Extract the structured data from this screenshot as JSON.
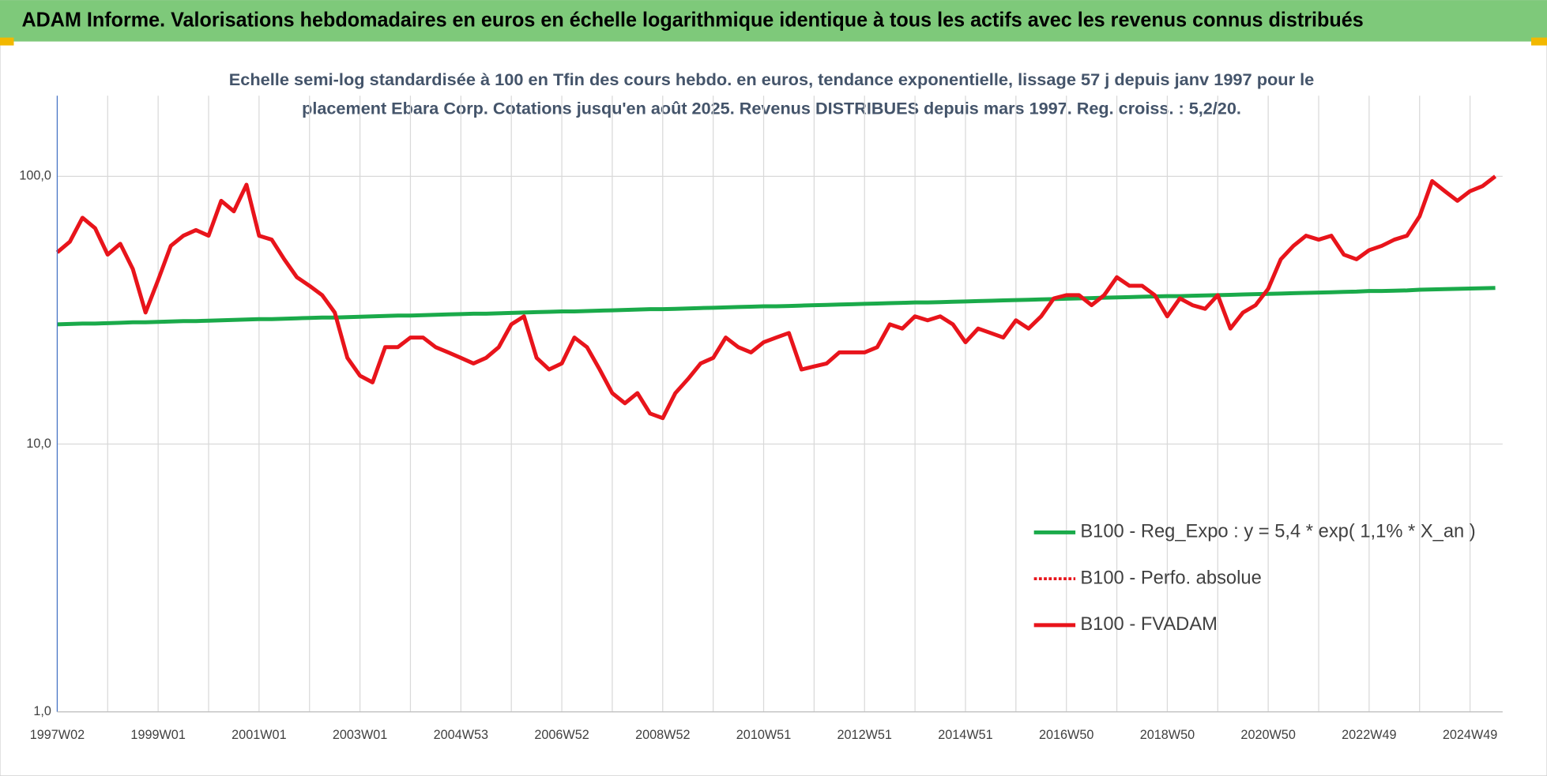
{
  "chart_data": {
    "type": "line",
    "title": "ADAM Informe. Valorisations hebdomadaires en euros en échelle logarithmique identique à tous les actifs avec les revenus connus distribués",
    "subtitle": [
      "Echelle semi-log standardisée à 100 en Tfin des cours hebdo. en euros, tendance exponentielle, lissage 57 j depuis janv 1997 pour le",
      "placement Ebara Corp. Cotations jusqu'en août 2025.  Revenus DISTRIBUES depuis mars 1997. Reg. croiss. : 5,2/20."
    ],
    "categories": [
      "1997W02",
      null,
      null,
      null,
      null,
      null,
      null,
      null,
      "1999W01",
      null,
      null,
      null,
      null,
      null,
      null,
      null,
      "2001W01",
      null,
      null,
      null,
      null,
      null,
      null,
      null,
      "2003W01",
      null,
      null,
      null,
      null,
      null,
      null,
      null,
      "2004W53",
      null,
      null,
      null,
      null,
      null,
      null,
      null,
      "2006W52",
      null,
      null,
      null,
      null,
      null,
      null,
      null,
      "2008W52",
      null,
      null,
      null,
      null,
      null,
      null,
      null,
      "2010W51",
      null,
      null,
      null,
      null,
      null,
      null,
      null,
      "2012W51",
      null,
      null,
      null,
      null,
      null,
      null,
      null,
      "2014W51",
      null,
      null,
      null,
      null,
      null,
      null,
      null,
      "2016W50",
      null,
      null,
      null,
      null,
      null,
      null,
      null,
      "2018W50",
      null,
      null,
      null,
      null,
      null,
      null,
      null,
      "2020W50",
      null,
      null,
      null,
      null,
      null,
      null,
      null,
      "2022W49",
      null,
      null,
      null,
      null,
      null,
      null,
      null,
      "2024W49",
      null,
      null
    ],
    "series": [
      {
        "name": "B100 - Reg_Expo : y = 5,4 * exp( 1,1% *  X_an )",
        "color": "#1aaa4a",
        "dash": "solid",
        "width": 4,
        "values": [
          28.0,
          28.1,
          28.2,
          28.2,
          28.3,
          28.4,
          28.5,
          28.5,
          28.6,
          28.7,
          28.8,
          28.8,
          28.9,
          29.0,
          29.1,
          29.2,
          29.3,
          29.3,
          29.4,
          29.5,
          29.6,
          29.7,
          29.7,
          29.8,
          29.9,
          30.0,
          30.1,
          30.2,
          30.2,
          30.3,
          30.4,
          30.5,
          30.6,
          30.7,
          30.7,
          30.8,
          30.9,
          31.0,
          31.1,
          31.2,
          31.3,
          31.3,
          31.4,
          31.5,
          31.6,
          31.7,
          31.8,
          31.9,
          31.9,
          32.0,
          32.1,
          32.2,
          32.3,
          32.4,
          32.5,
          32.6,
          32.7,
          32.7,
          32.8,
          32.9,
          33.0,
          33.1,
          33.2,
          33.3,
          33.4,
          33.5,
          33.6,
          33.7,
          33.8,
          33.8,
          33.9,
          34.0,
          34.1,
          34.2,
          34.3,
          34.4,
          34.5,
          34.6,
          34.7,
          34.8,
          34.9,
          35.0,
          35.1,
          35.2,
          35.3,
          35.4,
          35.5,
          35.6,
          35.7,
          35.7,
          35.8,
          35.9,
          36.0,
          36.1,
          36.2,
          36.3,
          36.4,
          36.5,
          36.6,
          36.7,
          36.8,
          36.9,
          37.0,
          37.1,
          37.3,
          37.3,
          37.4,
          37.5,
          37.7,
          37.8,
          37.9,
          38.0,
          38.1,
          38.2,
          38.3
        ]
      },
      {
        "name": "B100 - Perfo. absolue",
        "color": "#e8141b",
        "dash": "dotted",
        "width": 3,
        "values": [
          52,
          57,
          70,
          64,
          51,
          56,
          45,
          31,
          41,
          55,
          60,
          63,
          60,
          81,
          74,
          93,
          60,
          58,
          49,
          42,
          39,
          36,
          31,
          21,
          18,
          17,
          23,
          23,
          25,
          25,
          23,
          22,
          21,
          20,
          21,
          23,
          28,
          30,
          21,
          19,
          20,
          25,
          23,
          19,
          15.5,
          14.2,
          15.5,
          13,
          12.5,
          15.5,
          17.5,
          20,
          21,
          25,
          23,
          22,
          24,
          25,
          26,
          19,
          19.5,
          20,
          22,
          22,
          22,
          23,
          28,
          27,
          30,
          29,
          30,
          28,
          24,
          27,
          26,
          25,
          29,
          27,
          30,
          35,
          36,
          36,
          33,
          36,
          42,
          39,
          39,
          36,
          30,
          35,
          33,
          32,
          36,
          27,
          31,
          33,
          38,
          49,
          55,
          60,
          58,
          60,
          51,
          49,
          53,
          55,
          58,
          60,
          71,
          96,
          88,
          81,
          88,
          92,
          100
        ]
      },
      {
        "name": "B100 - FVADAM",
        "color": "#e8141b",
        "dash": "solid",
        "width": 4,
        "values": [
          52,
          57,
          70,
          64,
          51,
          56,
          45,
          31,
          41,
          55,
          60,
          63,
          60,
          81,
          74,
          93,
          60,
          58,
          49,
          42,
          39,
          36,
          31,
          21,
          18,
          17,
          23,
          23,
          25,
          25,
          23,
          22,
          21,
          20,
          21,
          23,
          28,
          30,
          21,
          19,
          20,
          25,
          23,
          19,
          15.5,
          14.2,
          15.5,
          13,
          12.5,
          15.5,
          17.5,
          20,
          21,
          25,
          23,
          22,
          24,
          25,
          26,
          19,
          19.5,
          20,
          22,
          22,
          22,
          23,
          28,
          27,
          30,
          29,
          30,
          28,
          24,
          27,
          26,
          25,
          29,
          27,
          30,
          35,
          36,
          36,
          33,
          36,
          42,
          39,
          39,
          36,
          30,
          35,
          33,
          32,
          36,
          27,
          31,
          33,
          38,
          49,
          55,
          60,
          58,
          60,
          51,
          49,
          53,
          55,
          58,
          60,
          71,
          96,
          88,
          81,
          88,
          92,
          100
        ]
      }
    ],
    "ylim": [
      1,
      200
    ],
    "yticks": [
      {
        "value": 1,
        "label": "1,0"
      },
      {
        "value": 10,
        "label": "10,0"
      },
      {
        "value": 100,
        "label": "100,0"
      }
    ],
    "log_scale": true,
    "grid": true,
    "legend": "right"
  }
}
